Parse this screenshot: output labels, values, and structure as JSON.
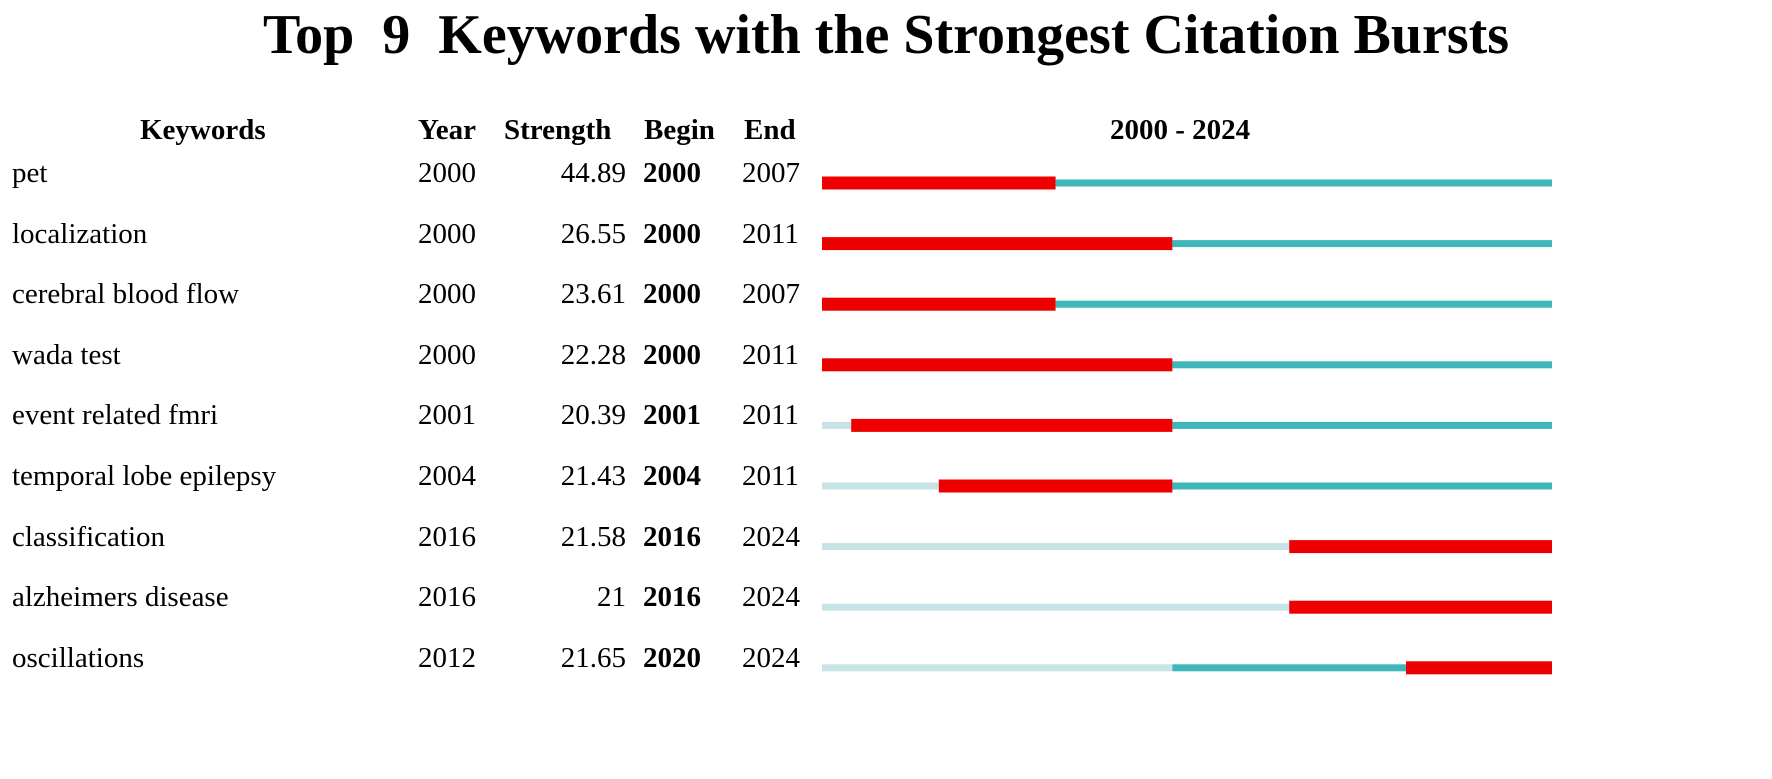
{
  "chart_data": {
    "type": "table",
    "title": "Top  9  Keywords with the Strongest Citation Bursts",
    "columns": {
      "keywords": "Keywords",
      "year": "Year",
      "strength": "Strength",
      "begin": "Begin",
      "end": "End",
      "range": "2000 - 2024"
    },
    "timeline": {
      "start": 2000,
      "end": 2024
    },
    "colors": {
      "burst": "#ee0000",
      "active": "#3fb6b8",
      "inactive": "#c6e4e6"
    },
    "rows": [
      {
        "keyword": "pet",
        "year": "2000",
        "strength": "44.89",
        "begin": "2000",
        "end": "2007"
      },
      {
        "keyword": "localization",
        "year": "2000",
        "strength": "26.55",
        "begin": "2000",
        "end": "2011"
      },
      {
        "keyword": "cerebral blood flow",
        "year": "2000",
        "strength": "23.61",
        "begin": "2000",
        "end": "2007"
      },
      {
        "keyword": "wada test",
        "year": "2000",
        "strength": "22.28",
        "begin": "2000",
        "end": "2011"
      },
      {
        "keyword": "event related fmri",
        "year": "2001",
        "strength": "20.39",
        "begin": "2001",
        "end": "2011"
      },
      {
        "keyword": "temporal lobe epilepsy",
        "year": "2004",
        "strength": "21.43",
        "begin": "2004",
        "end": "2011"
      },
      {
        "keyword": "classification",
        "year": "2016",
        "strength": "21.58",
        "begin": "2016",
        "end": "2024"
      },
      {
        "keyword": "alzheimers disease",
        "year": "2016",
        "strength": "21",
        "begin": "2016",
        "end": "2024"
      },
      {
        "keyword": "oscillations",
        "year": "2012",
        "strength": "21.65",
        "begin": "2020",
        "end": "2024"
      }
    ]
  }
}
